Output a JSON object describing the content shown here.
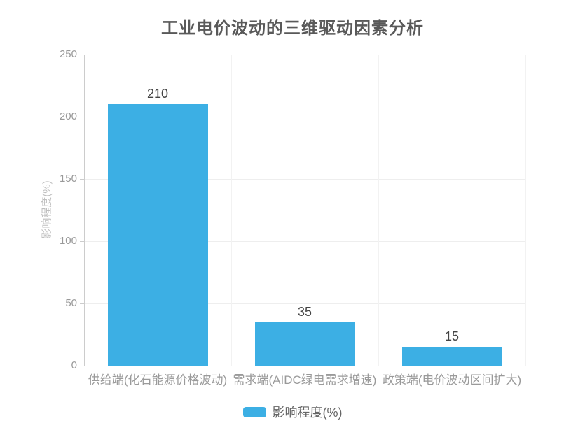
{
  "chart_data": {
    "type": "bar",
    "title": "工业电价波动的三维驱动因素分析",
    "categories": [
      "供给端(化石能源价格波动)",
      "需求端(AIDC绿电需求增速)",
      "政策端(电价波动区间扩大)"
    ],
    "series": [
      {
        "name": "影响程度(%)",
        "values": [
          210,
          35,
          15
        ],
        "color": "#3CAFE4"
      }
    ],
    "value_labels": [
      "210",
      "35",
      "15"
    ],
    "xlabel": "",
    "ylabel": "影响程度(%)",
    "ylim": [
      0,
      250
    ],
    "yticks": [
      0,
      50,
      100,
      150,
      200,
      250
    ],
    "grid": true,
    "legend": {
      "label": "影响程度(%)",
      "position": "bottom"
    }
  },
  "colors": {
    "bar": "#3CAFE4",
    "title_text": "#595959",
    "axis_tick_text": "#999999",
    "axis_name_text": "#bfbfbf",
    "value_label_text": "#444444",
    "grid_line": "#eeeeee",
    "axis_line": "#cccccc",
    "legend_text": "#666666",
    "background": "#ffffff"
  }
}
